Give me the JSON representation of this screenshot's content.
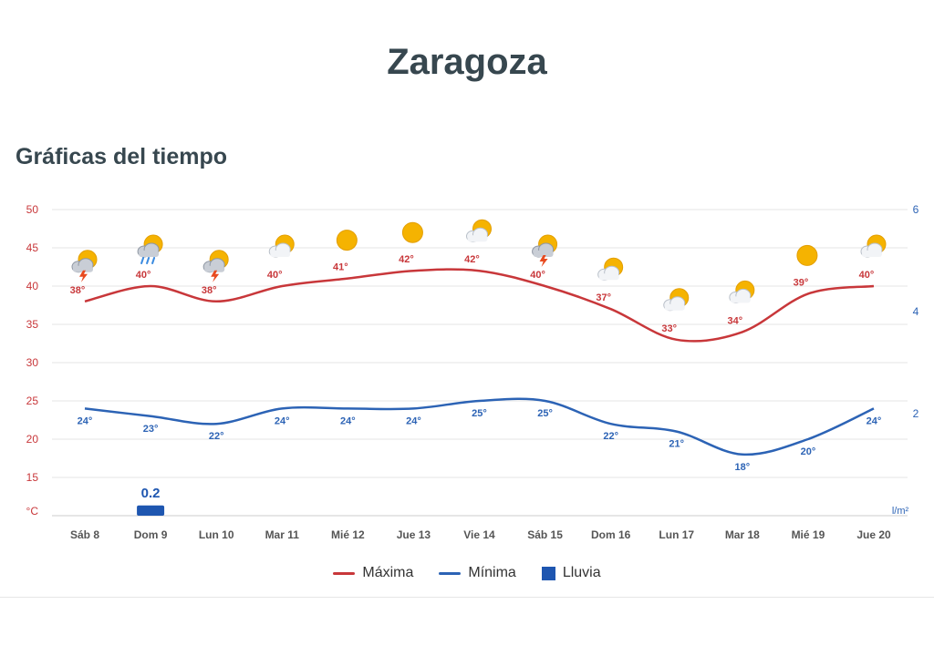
{
  "page": {
    "city": "Zaragoza",
    "section_title": "Gráficas del tiempo"
  },
  "colors": {
    "max": "#c8373a",
    "min": "#2c63b5",
    "rain": "#1e56b0",
    "grid": "#e6e6e6",
    "axis_text": "#555555"
  },
  "chart_data": {
    "type": "line",
    "categories": [
      "Sáb 8",
      "Dom 9",
      "Lun 10",
      "Mar 11",
      "Mié 12",
      "Jue 13",
      "Vie 14",
      "Sáb 15",
      "Dom 16",
      "Lun 17",
      "Mar 18",
      "Mié 19",
      "Jue 20"
    ],
    "series": [
      {
        "name": "Máxima",
        "axis": "left",
        "values": [
          38,
          40,
          38,
          40,
          41,
          42,
          42,
          40,
          37,
          33,
          34,
          39,
          40
        ],
        "labels": [
          "38°",
          "40°",
          "38°",
          "40°",
          "41°",
          "42°",
          "42°",
          "40°",
          "37°",
          "33°",
          "34°",
          "39°",
          "40°"
        ]
      },
      {
        "name": "Mínima",
        "axis": "left",
        "values": [
          24,
          23,
          22,
          24,
          24,
          24,
          25,
          25,
          22,
          21,
          18,
          20,
          24
        ],
        "labels": [
          "24°",
          "23°",
          "22°",
          "24°",
          "24°",
          "24°",
          "25°",
          "25°",
          "22°",
          "21°",
          "18°",
          "20°",
          "24°"
        ]
      },
      {
        "name": "Lluvia",
        "type": "bar",
        "axis": "right",
        "values": [
          0,
          0.2,
          0,
          0,
          0,
          0,
          0,
          0,
          0,
          0,
          0,
          0,
          0
        ],
        "labels": [
          "",
          "0.2",
          "",
          "",
          "",
          "",
          "",
          "",
          "",
          "",
          "",
          "",
          ""
        ]
      }
    ],
    "y_left": {
      "unit": "°C",
      "ticks": [
        "50",
        "45",
        "40",
        "35",
        "30",
        "25",
        "20",
        "15"
      ],
      "range": [
        10,
        50
      ]
    },
    "y_right": {
      "unit": "l/m²",
      "ticks": [
        "6",
        "4",
        "2"
      ],
      "range": [
        0,
        6
      ]
    },
    "weather_icons": [
      "sun-cloud-storm-icon",
      "sun-cloud-rain-icon",
      "sun-cloud-storm-icon",
      "sun-cloud-icon",
      "sun-icon",
      "sun-icon",
      "sun-cloud-icon",
      "sun-cloud-storm-icon",
      "sun-cloud-icon",
      "sun-cloud-icon",
      "sun-cloud-icon",
      "sun-icon",
      "sun-cloud-icon"
    ],
    "grid": true,
    "legend_position": "bottom"
  }
}
